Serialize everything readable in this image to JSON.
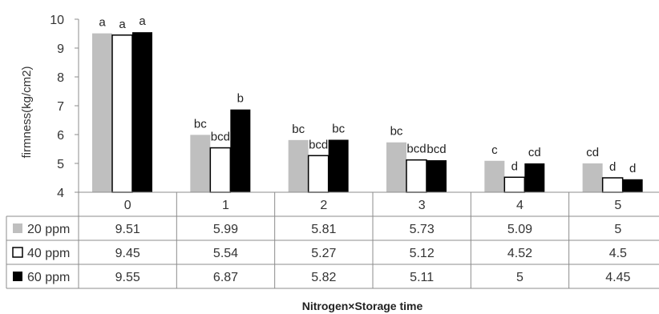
{
  "chart_data": {
    "type": "bar",
    "title": "",
    "xlabel": "Nitrogen×Storage time",
    "ylabel": "firmness(kg/cm2)",
    "ylim": [
      4,
      10
    ],
    "yticks": [
      4,
      5,
      6,
      7,
      8,
      9,
      10
    ],
    "grid": false,
    "legend": "data-table-left",
    "categories": [
      "0",
      "1",
      "2",
      "3",
      "4",
      "5"
    ],
    "series": [
      {
        "name": "20 ppm",
        "color": "#bfbfbf",
        "values": [
          9.51,
          5.99,
          5.81,
          5.73,
          5.09,
          5
        ],
        "labels": [
          "a",
          "bc",
          "bc",
          "bc",
          "c",
          "cd"
        ]
      },
      {
        "name": "40 ppm",
        "color": "#ffffff",
        "values": [
          9.45,
          5.54,
          5.27,
          5.12,
          4.52,
          4.5
        ],
        "labels": [
          "a",
          "bcd",
          "bcd",
          "bcd",
          "d",
          "d"
        ]
      },
      {
        "name": "60 ppm",
        "color": "#000000",
        "values": [
          9.55,
          6.87,
          5.82,
          5.11,
          5,
          4.45
        ],
        "labels": [
          "a",
          "b",
          "bc",
          "bcd",
          "cd",
          "d"
        ]
      }
    ]
  }
}
